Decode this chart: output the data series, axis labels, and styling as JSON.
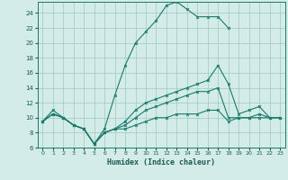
{
  "title": "",
  "xlabel": "Humidex (Indice chaleur)",
  "xlim": [
    -0.5,
    23.5
  ],
  "ylim": [
    6,
    25.5
  ],
  "yticks": [
    6,
    8,
    10,
    12,
    14,
    16,
    18,
    20,
    22,
    24
  ],
  "xticks": [
    0,
    1,
    2,
    3,
    4,
    5,
    6,
    7,
    8,
    9,
    10,
    11,
    12,
    13,
    14,
    15,
    16,
    17,
    18,
    19,
    20,
    21,
    22,
    23
  ],
  "bg_color": "#d4ece8",
  "grid_color": "#9ec8c0",
  "line_color": "#1a7a6a",
  "line1_y": [
    9.5,
    11,
    10,
    9,
    8.5,
    6.5,
    8.5,
    13,
    17,
    20,
    21.5,
    23,
    25,
    25.5,
    24.5,
    23.5,
    23.5,
    23.5,
    22,
    null,
    null,
    null,
    null,
    null
  ],
  "line2_y": [
    9.5,
    10.5,
    10,
    9,
    8.5,
    6.5,
    8.0,
    8.5,
    9.5,
    11,
    12,
    12.5,
    13,
    13.5,
    14,
    14.5,
    15,
    17,
    14.5,
    10.5,
    11,
    11.5,
    10,
    10
  ],
  "line3_y": [
    9.5,
    10.5,
    10,
    9,
    8.5,
    6.5,
    8.0,
    8.5,
    9.0,
    10,
    11,
    11.5,
    12,
    12.5,
    13,
    13.5,
    13.5,
    14,
    10,
    10,
    10,
    10.5,
    10,
    10
  ],
  "line4_y": [
    9.5,
    10.5,
    10,
    9,
    8.5,
    6.5,
    8.0,
    8.5,
    8.5,
    9,
    9.5,
    10,
    10,
    10.5,
    10.5,
    10.5,
    11,
    11,
    9.5,
    10,
    10,
    10,
    10,
    10
  ]
}
